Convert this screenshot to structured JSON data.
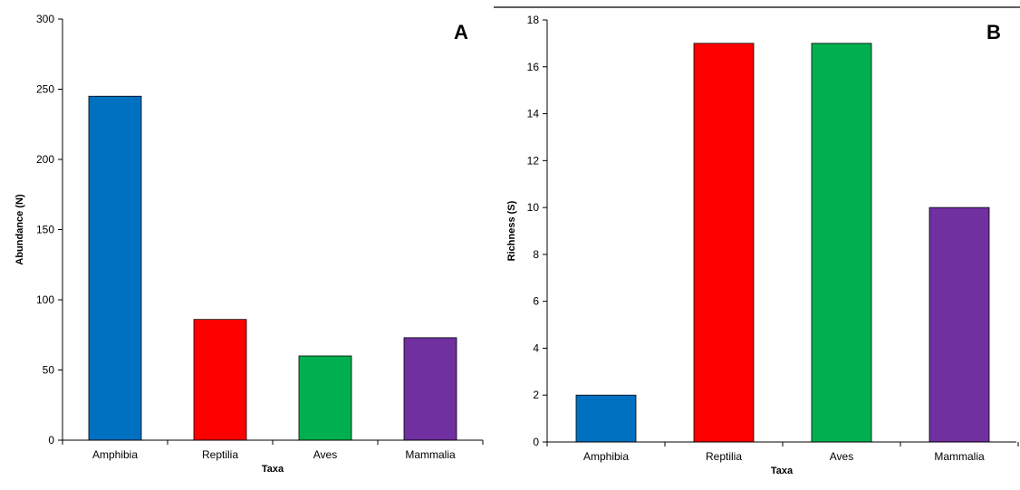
{
  "chart_data": [
    {
      "type": "bar",
      "panel": "A",
      "categories": [
        "Amphibia",
        "Reptilia",
        "Aves",
        "Mammalia"
      ],
      "values": [
        245,
        86,
        60,
        73
      ],
      "colors": [
        "#0070c0",
        "#ff0000",
        "#00b050",
        "#7030a0"
      ],
      "xlabel": "Taxa",
      "ylabel": "Abundance (N)",
      "ylim": [
        0,
        300
      ],
      "yticks": [
        0,
        50,
        100,
        150,
        200,
        250,
        300
      ],
      "grid": false
    },
    {
      "type": "bar",
      "panel": "B",
      "categories": [
        "Amphibia",
        "Reptilia",
        "Aves",
        "Mammalia"
      ],
      "values": [
        2,
        17,
        17,
        10
      ],
      "colors": [
        "#0070c0",
        "#ff0000",
        "#00b050",
        "#7030a0"
      ],
      "xlabel": "Taxa",
      "ylabel": "Richness (S)",
      "ylim": [
        0,
        18
      ],
      "yticks": [
        0,
        2,
        4,
        6,
        8,
        10,
        12,
        14,
        16,
        18
      ],
      "grid": false
    }
  ]
}
